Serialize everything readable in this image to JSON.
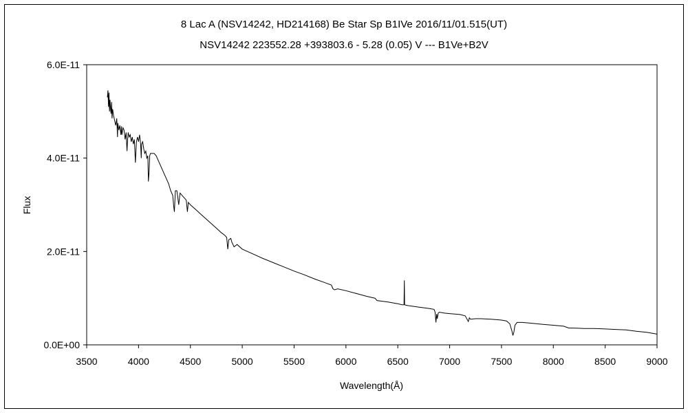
{
  "chart_data": {
    "type": "line",
    "title": "8 Lac A (NSV14242, HD214168)    Be Star    Sp  B1IVe    2016/11/01.515(UT)",
    "subtitle": "NSV14242 223552.28 +393803.6 - 5.28 (0.05) V --- B1Ve+B2V",
    "xlabel": "Wavelength(Å)",
    "ylabel": "Flux",
    "xlim": [
      3500,
      9000
    ],
    "ylim": [
      0,
      6e-11
    ],
    "xticks": [
      3500,
      4000,
      4500,
      5000,
      5500,
      6000,
      6500,
      7000,
      7500,
      8000,
      8500,
      9000
    ],
    "xtick_labels": [
      "3500",
      "4000",
      "4500",
      "5000",
      "5500",
      "6000",
      "6500",
      "7000",
      "7500",
      "8000",
      "8500",
      "9000"
    ],
    "yticks": [
      0,
      2e-11,
      4e-11,
      6e-11
    ],
    "ytick_labels": [
      "0.0E+00",
      "2.0E-11",
      "4.0E-11",
      "6.0E-11"
    ],
    "grid": false,
    "legend": "none",
    "series": [
      {
        "color": "#000000",
        "x": [
          3700,
          3705,
          3710,
          3715,
          3720,
          3725,
          3730,
          3735,
          3740,
          3745,
          3750,
          3760,
          3770,
          3780,
          3790,
          3797,
          3800,
          3810,
          3820,
          3830,
          3835,
          3840,
          3850,
          3860,
          3870,
          3880,
          3889,
          3895,
          3900,
          3910,
          3920,
          3930,
          3940,
          3950,
          3960,
          3970,
          3980,
          3990,
          4000,
          4010,
          4020,
          4026,
          4030,
          4040,
          4050,
          4060,
          4070,
          4080,
          4090,
          4095,
          4102,
          4108,
          4115,
          4130,
          4150,
          4170,
          4190,
          4210,
          4230,
          4250,
          4270,
          4290,
          4310,
          4330,
          4340,
          4346,
          4355,
          4370,
          4388,
          4400,
          4420,
          4440,
          4460,
          4471,
          4480,
          4500,
          4550,
          4600,
          4650,
          4700,
          4750,
          4800,
          4830,
          4850,
          4861,
          4870,
          4890,
          4900,
          4921,
          4950,
          5000,
          5100,
          5200,
          5300,
          5400,
          5500,
          5600,
          5700,
          5800,
          5860,
          5875,
          5890,
          5920,
          6000,
          6100,
          6200,
          6280,
          6300,
          6400,
          6500,
          6540,
          6560,
          6563,
          6566,
          6575,
          6600,
          6700,
          6800,
          6850,
          6860,
          6868,
          6875,
          6880,
          6890,
          6900,
          6950,
          7000,
          7100,
          7150,
          7180,
          7190,
          7200,
          7250,
          7300,
          7400,
          7500,
          7550,
          7580,
          7600,
          7610,
          7620,
          7630,
          7650,
          7700,
          7800,
          7900,
          8000,
          8100,
          8150,
          8200,
          8300,
          8400,
          8500,
          8600,
          8700,
          8800,
          8900,
          9000
        ],
        "y": [
          5.3e-11,
          5.45e-11,
          5.1e-11,
          5.4e-11,
          5e-11,
          5.25e-11,
          5.05e-11,
          4.95e-11,
          5.2e-11,
          4.85e-11,
          5.05e-11,
          4.9e-11,
          4.8e-11,
          4.7e-11,
          4.85e-11,
          4.45e-11,
          4.75e-11,
          4.6e-11,
          4.7e-11,
          4.5e-11,
          4.68e-11,
          4.5e-11,
          4.65e-11,
          4.6e-11,
          4.4e-11,
          4.55e-11,
          4.15e-11,
          4.4e-11,
          4.55e-11,
          4.45e-11,
          4.5e-11,
          4.35e-11,
          4.45e-11,
          4.3e-11,
          4.4e-11,
          3.9e-11,
          4.35e-11,
          4.45e-11,
          4.35e-11,
          4.5e-11,
          4.3e-11,
          4e-11,
          4.3e-11,
          4.35e-11,
          4.2e-11,
          4.1e-11,
          4.15e-11,
          4e-11,
          4.05e-11,
          3.5e-11,
          3.7e-11,
          4.05e-11,
          4.1e-11,
          4.1e-11,
          4.1e-11,
          4.05e-11,
          3.95e-11,
          3.85e-11,
          3.75e-11,
          3.65e-11,
          3.55e-11,
          3.45e-11,
          3.3e-11,
          3.2e-11,
          2.95e-11,
          2.85e-11,
          3.3e-11,
          3.3e-11,
          3e-11,
          3.25e-11,
          3.2e-11,
          3.15e-11,
          3.1e-11,
          2.85e-11,
          3.05e-11,
          3e-11,
          2.9e-11,
          2.8e-11,
          2.7e-11,
          2.6e-11,
          2.5e-11,
          2.4e-11,
          2.35e-11,
          2.3e-11,
          2.05e-11,
          2.25e-11,
          2.28e-11,
          2.2e-11,
          2.1e-11,
          2.15e-11,
          2.05e-11,
          1.95e-11,
          1.85e-11,
          1.76e-11,
          1.67e-11,
          1.58e-11,
          1.5e-11,
          1.41e-11,
          1.33e-11,
          1.28e-11,
          1.2e-11,
          1.18e-11,
          1.2e-11,
          1.16e-11,
          1.1e-11,
          1.04e-11,
          1e-11,
          9.5e-12,
          9.2e-12,
          8.8e-12,
          8.6e-12,
          8.6e-12,
          1.38e-11,
          8.6e-12,
          8.5e-12,
          8.4e-12,
          8.1e-12,
          7.8e-12,
          7.6e-12,
          7e-12,
          4.8e-12,
          6.6e-12,
          5.6e-12,
          6.8e-12,
          7e-12,
          6.8e-12,
          6.7e-12,
          6.5e-12,
          6.2e-12,
          5e-12,
          5.8e-12,
          5.5e-12,
          5.6e-12,
          5.6e-12,
          5.5e-12,
          5.3e-12,
          5.1e-12,
          4.5e-12,
          3e-12,
          2e-12,
          2.8e-12,
          4.2e-12,
          4.8e-12,
          4.8e-12,
          4.6e-12,
          4.4e-12,
          4.2e-12,
          4e-12,
          3.6e-12,
          3.6e-12,
          3.5e-12,
          3.5e-12,
          3.4e-12,
          3.3e-12,
          3.2e-12,
          2.9e-12,
          2.7e-12,
          2.3e-12
        ]
      }
    ]
  }
}
